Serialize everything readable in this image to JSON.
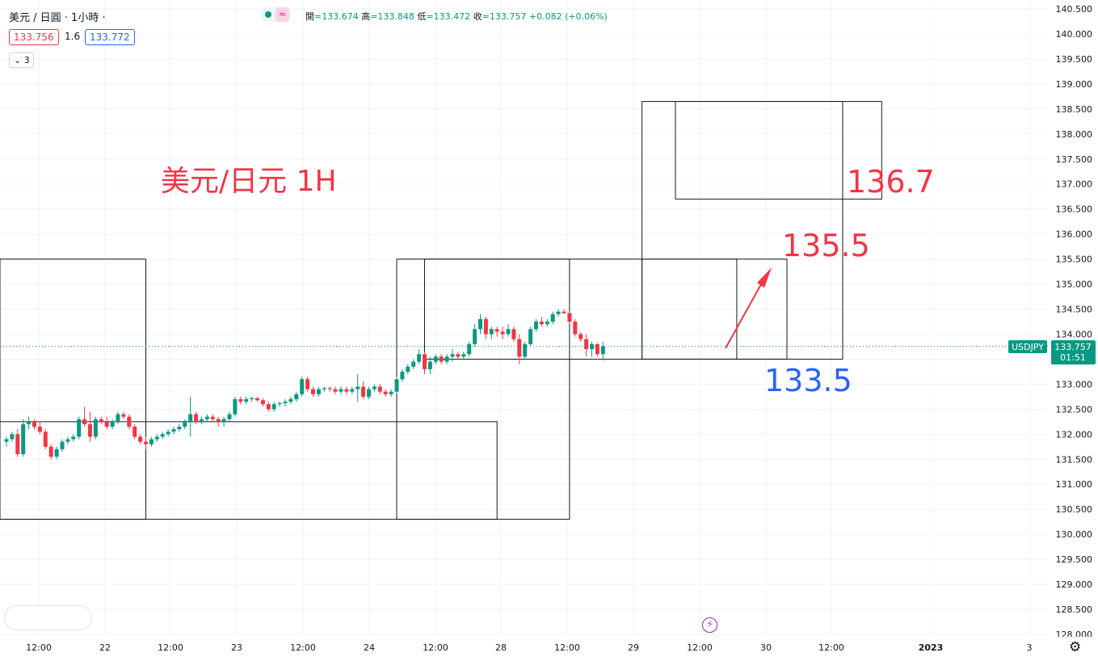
{
  "header": {
    "symbol": "美元 / 日圓 · 1小時 ·",
    "ohlc_open_label": "開",
    "ohlc_open": "=133.674",
    "ohlc_high_label": "高",
    "ohlc_high": "=133.848",
    "ohlc_low_label": "低",
    "ohlc_low": "=133.472",
    "ohlc_close_label": "收",
    "ohlc_close": "=133.757",
    "ohlc_change": "+0.082 (+0.06%)",
    "bid": "133.756",
    "spread": "1.6",
    "ask": "133.772",
    "indicator_count": "3",
    "collapse_icon": "chevron-down-icon",
    "wave_icon": "≈"
  },
  "chart_data": {
    "type": "candlestick",
    "symbol": "USDJPY",
    "title": "美元/日元 1H",
    "current_price": "133.757",
    "countdown": "01:51",
    "y_axis": {
      "range": [
        128.0,
        140.5
      ],
      "ticks": [
        "140.500",
        "140.000",
        "139.500",
        "139.000",
        "138.500",
        "138.000",
        "137.500",
        "137.000",
        "136.500",
        "136.000",
        "135.500",
        "135.000",
        "134.500",
        "134.000",
        "133.500",
        "133.000",
        "132.500",
        "132.000",
        "131.500",
        "131.000",
        "130.500",
        "130.000",
        "129.500",
        "129.000",
        "128.500",
        "128.000"
      ]
    },
    "x_axis": {
      "labels": [
        "12:00",
        "22",
        "12:00",
        "23",
        "12:00",
        "24",
        "12:00",
        "28",
        "12:00",
        "29",
        "12:00",
        "30",
        "12:00",
        "2023",
        "3"
      ]
    },
    "candles_approx": [
      [
        131.85,
        131.95,
        131.75,
        131.9
      ],
      [
        131.9,
        132.05,
        131.85,
        132.0
      ],
      [
        132.0,
        132.1,
        131.55,
        131.6
      ],
      [
        131.6,
        132.3,
        131.55,
        132.2
      ],
      [
        132.2,
        132.35,
        132.1,
        132.25
      ],
      [
        132.25,
        132.3,
        132.1,
        132.15
      ],
      [
        132.15,
        132.25,
        132.0,
        132.05
      ],
      [
        132.05,
        132.1,
        131.7,
        131.75
      ],
      [
        131.75,
        131.8,
        131.5,
        131.55
      ],
      [
        131.55,
        131.75,
        131.5,
        131.7
      ],
      [
        131.7,
        131.9,
        131.65,
        131.85
      ],
      [
        131.85,
        131.95,
        131.8,
        131.9
      ],
      [
        131.9,
        132.0,
        131.85,
        131.95
      ],
      [
        131.95,
        132.35,
        131.9,
        132.3
      ],
      [
        132.3,
        132.55,
        132.15,
        132.2
      ],
      [
        132.2,
        132.45,
        131.85,
        131.95
      ],
      [
        131.95,
        132.35,
        131.9,
        132.3
      ],
      [
        132.3,
        132.35,
        132.2,
        132.25
      ],
      [
        132.25,
        132.35,
        132.1,
        132.15
      ],
      [
        132.15,
        132.3,
        132.1,
        132.25
      ],
      [
        132.25,
        132.45,
        132.2,
        132.4
      ],
      [
        132.4,
        132.45,
        132.3,
        132.35
      ],
      [
        132.35,
        132.4,
        132.1,
        132.15
      ],
      [
        132.15,
        132.2,
        131.9,
        131.95
      ],
      [
        131.95,
        132.0,
        131.8,
        131.85
      ],
      [
        131.85,
        131.95,
        131.7,
        131.8
      ],
      [
        131.8,
        131.95,
        131.75,
        131.9
      ],
      [
        131.9,
        132.0,
        131.85,
        131.95
      ],
      [
        131.95,
        132.05,
        131.9,
        132.0
      ],
      [
        132.0,
        132.1,
        131.95,
        132.05
      ],
      [
        132.05,
        132.15,
        132.0,
        132.1
      ],
      [
        132.1,
        132.2,
        132.05,
        132.15
      ],
      [
        132.15,
        132.3,
        132.1,
        132.25
      ],
      [
        132.25,
        132.75,
        131.95,
        132.4
      ],
      [
        132.4,
        132.45,
        132.2,
        132.25
      ],
      [
        132.25,
        132.35,
        132.2,
        132.3
      ],
      [
        132.3,
        132.4,
        132.25,
        132.35
      ],
      [
        132.35,
        132.4,
        132.25,
        132.3
      ],
      [
        132.3,
        132.35,
        132.15,
        132.25
      ],
      [
        132.25,
        132.35,
        132.15,
        132.3
      ],
      [
        132.3,
        132.45,
        132.25,
        132.4
      ],
      [
        132.4,
        132.75,
        132.35,
        132.7
      ],
      [
        132.7,
        132.75,
        132.6,
        132.65
      ],
      [
        132.65,
        132.75,
        132.6,
        132.7
      ],
      [
        132.7,
        132.75,
        132.65,
        132.72
      ],
      [
        132.72,
        132.75,
        132.65,
        132.68
      ],
      [
        132.68,
        132.72,
        132.55,
        132.6
      ],
      [
        132.6,
        132.65,
        132.45,
        132.5
      ],
      [
        132.5,
        132.65,
        132.45,
        132.6
      ],
      [
        132.6,
        132.65,
        132.55,
        132.62
      ],
      [
        132.62,
        132.7,
        132.55,
        132.65
      ],
      [
        132.65,
        132.75,
        132.6,
        132.7
      ],
      [
        132.7,
        132.85,
        132.65,
        132.8
      ],
      [
        132.8,
        133.15,
        132.75,
        133.1
      ],
      [
        133.1,
        133.15,
        132.85,
        132.9
      ],
      [
        132.9,
        132.95,
        132.75,
        132.8
      ],
      [
        132.8,
        132.95,
        132.75,
        132.9
      ],
      [
        132.9,
        132.95,
        132.85,
        132.92
      ],
      [
        132.92,
        132.95,
        132.85,
        132.9
      ],
      [
        132.9,
        132.95,
        132.8,
        132.85
      ],
      [
        132.85,
        132.95,
        132.8,
        132.9
      ],
      [
        132.9,
        132.95,
        132.8,
        132.85
      ],
      [
        132.85,
        132.95,
        132.8,
        132.9
      ],
      [
        132.9,
        133.2,
        132.65,
        132.95
      ],
      [
        132.95,
        133.05,
        132.7,
        132.75
      ],
      [
        132.75,
        132.95,
        132.7,
        132.9
      ],
      [
        132.9,
        133.0,
        132.85,
        132.95
      ],
      [
        132.95,
        133.0,
        132.8,
        132.85
      ],
      [
        132.85,
        132.9,
        132.75,
        132.8
      ],
      [
        132.8,
        132.9,
        132.75,
        132.85
      ],
      [
        132.85,
        133.15,
        132.8,
        133.1
      ],
      [
        133.1,
        133.3,
        133.05,
        133.25
      ],
      [
        133.25,
        133.4,
        133.2,
        133.35
      ],
      [
        133.35,
        133.5,
        133.3,
        133.45
      ],
      [
        133.45,
        133.7,
        133.4,
        133.6
      ],
      [
        133.6,
        133.65,
        133.2,
        133.3
      ],
      [
        133.3,
        133.55,
        133.2,
        133.45
      ],
      [
        133.45,
        133.6,
        133.4,
        133.55
      ],
      [
        133.55,
        133.6,
        133.4,
        133.45
      ],
      [
        133.45,
        133.6,
        133.4,
        133.55
      ],
      [
        133.55,
        133.7,
        133.45,
        133.6
      ],
      [
        133.6,
        133.65,
        133.5,
        133.55
      ],
      [
        133.55,
        133.65,
        133.5,
        133.6
      ],
      [
        133.6,
        133.85,
        133.55,
        133.8
      ],
      [
        133.8,
        134.2,
        133.75,
        134.1
      ],
      [
        134.1,
        134.4,
        134.0,
        134.3
      ],
      [
        134.3,
        134.35,
        133.9,
        134.0
      ],
      [
        134.0,
        134.15,
        133.9,
        134.1
      ],
      [
        134.1,
        134.15,
        133.95,
        134.05
      ],
      [
        134.05,
        134.15,
        133.9,
        134.0
      ],
      [
        134.0,
        134.2,
        133.95,
        134.1
      ],
      [
        134.1,
        134.15,
        133.85,
        133.9
      ],
      [
        133.9,
        134.0,
        133.4,
        133.55
      ],
      [
        133.55,
        133.85,
        133.5,
        133.8
      ],
      [
        133.8,
        134.15,
        133.75,
        134.1
      ],
      [
        134.1,
        134.3,
        134.05,
        134.25
      ],
      [
        134.25,
        134.35,
        134.15,
        134.2
      ],
      [
        134.2,
        134.3,
        134.15,
        134.25
      ],
      [
        134.25,
        134.45,
        134.2,
        134.4
      ],
      [
        134.4,
        134.5,
        134.35,
        134.45
      ],
      [
        134.45,
        134.5,
        134.4,
        134.42
      ],
      [
        134.42,
        134.45,
        134.2,
        134.25
      ],
      [
        134.25,
        134.3,
        133.95,
        134.0
      ],
      [
        134.0,
        134.05,
        133.85,
        133.9
      ],
      [
        133.9,
        134.0,
        133.55,
        133.7
      ],
      [
        133.7,
        133.85,
        133.55,
        133.8
      ],
      [
        133.8,
        133.82,
        133.55,
        133.6
      ],
      [
        133.6,
        133.85,
        133.47,
        133.76
      ]
    ],
    "annotations": [
      {
        "text": "135.5",
        "color": "#f23645"
      },
      {
        "text": "136.7",
        "color": "#f23645"
      },
      {
        "text": "133.5",
        "color": "#2962ff"
      }
    ],
    "rectangles": [
      {
        "top": 135.5,
        "bottom": 130.3,
        "from_index": -1,
        "to_index": 25
      },
      {
        "top": 132.25,
        "bottom": 130.3,
        "from_index": -1,
        "to_index": 88
      },
      {
        "top": 135.5,
        "bottom": 130.3,
        "from_index": 70,
        "to_index": 101
      },
      {
        "top": 135.5,
        "bottom": 133.5,
        "from_index": 75,
        "to_index": 140
      },
      {
        "top": 138.65,
        "bottom": 133.5,
        "from_index": 114,
        "to_index": 150
      },
      {
        "top": 138.65,
        "bottom": 136.7,
        "from_index": 120,
        "to_index": 157
      },
      {
        "top": 135.5,
        "bottom": 133.5,
        "from_index": 114,
        "to_index": 131
      }
    ],
    "colors": {
      "up": "#089981",
      "down": "#f23645",
      "price_tag": "#089981"
    }
  }
}
